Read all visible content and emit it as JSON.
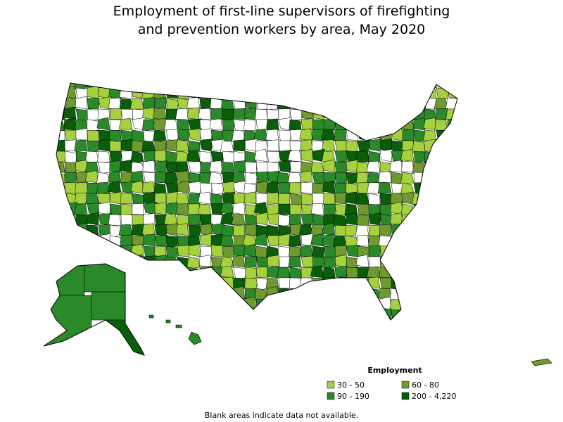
{
  "title": [
    "Employment of first-line supervisors of firefighting",
    "and prevention workers by area, May 2020"
  ],
  "legend": {
    "title": "Employment",
    "items": [
      {
        "label": "30 - 50",
        "color": "#a6d13e"
      },
      {
        "label": "60 - 80",
        "color": "#6e9a2f"
      },
      {
        "label": "90 - 190",
        "color": "#2a8a2a"
      },
      {
        "label": "200 - 4,220",
        "color": "#0a5e0a"
      }
    ]
  },
  "footnote": "Blank areas indicate data not available."
}
